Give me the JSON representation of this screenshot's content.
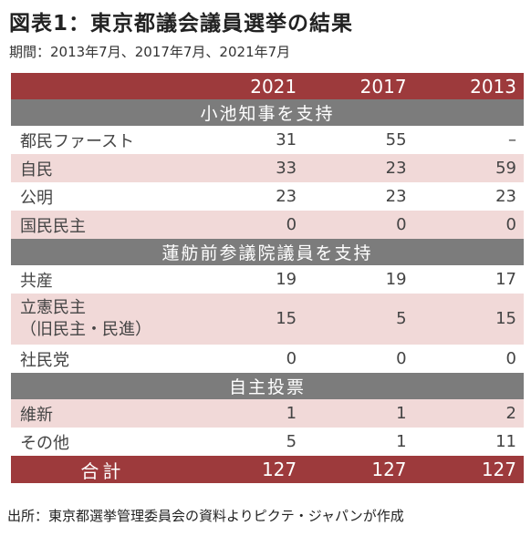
{
  "title": "図表1：東京都議会議員選挙の結果",
  "period": "期間：2013年7月、2017年7月、2021年7月",
  "years": [
    "2021",
    "2017",
    "2013"
  ],
  "sections": [
    {
      "title": "小池知事を支持",
      "rows": [
        {
          "party": "都民ファースト",
          "values": [
            "31",
            "55",
            "–"
          ]
        },
        {
          "party": "自民",
          "values": [
            "33",
            "23",
            "59"
          ]
        },
        {
          "party": "公明",
          "values": [
            "23",
            "23",
            "23"
          ]
        },
        {
          "party": "国民民主",
          "values": [
            "0",
            "0",
            "0"
          ]
        }
      ]
    },
    {
      "title": "蓮舫前参議院議員を支持",
      "rows": [
        {
          "party": "共産",
          "values": [
            "19",
            "19",
            "17"
          ]
        },
        {
          "party": "立憲民主",
          "party_note": "（旧民主・民進）",
          "values": [
            "15",
            "5",
            "15"
          ]
        },
        {
          "party": "社民党",
          "values": [
            "0",
            "0",
            "0"
          ]
        }
      ]
    },
    {
      "title": "自主投票",
      "rows": [
        {
          "party": "維新",
          "values": [
            "1",
            "1",
            "2"
          ]
        },
        {
          "party": "その他",
          "values": [
            "5",
            "1",
            "11"
          ]
        }
      ]
    }
  ],
  "total": {
    "label": "合計",
    "values": [
      "127",
      "127",
      "127"
    ]
  },
  "source": "出所：東京都選挙管理委員会の資料よりピクテ・ジャパンが作成",
  "colors": {
    "header": "#9d3a3c",
    "section": "#7c7c7c",
    "stripe": "#f1d9d8"
  }
}
